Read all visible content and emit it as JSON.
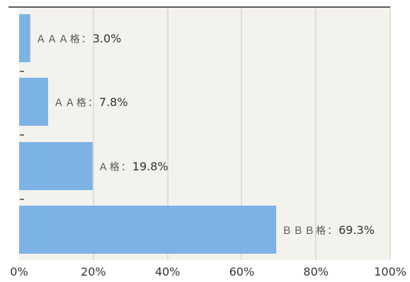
{
  "chart_data": {
    "type": "bar",
    "orientation": "horizontal",
    "categories": [
      "AAA格",
      "AA格",
      "A格",
      "BBB格"
    ],
    "category_labels": [
      "ＡＡＡ格",
      "ＡＡ格",
      "Ａ格",
      "ＢＢＢ格"
    ],
    "values": [
      3.0,
      7.8,
      19.8,
      69.3
    ],
    "value_labels": [
      "3.0%",
      "7.8%",
      "19.8%",
      "69.3%"
    ],
    "label_separator": "：",
    "xlim": [
      0,
      100
    ],
    "x_ticks": [
      0,
      20,
      40,
      60,
      80,
      100
    ],
    "x_tick_labels": [
      "0%",
      "20%",
      "40%",
      "60%",
      "80%",
      "100%"
    ],
    "title": "",
    "xlabel": "",
    "ylabel": "",
    "grid": "vertical",
    "colors": {
      "bar": "#7db3e4",
      "background": "#f4f2ec",
      "grid": "#c9c7c0",
      "axis": "#5a5a5a"
    }
  }
}
